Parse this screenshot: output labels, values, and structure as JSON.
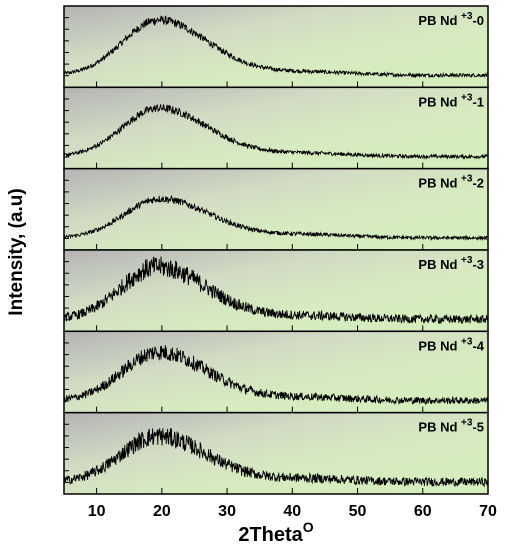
{
  "chart_data": {
    "type": "line",
    "layout": "stacked-panels",
    "xlabel": "2Theta",
    "xlabel_superscript": "O",
    "ylabel": "Intensity, (a.u)",
    "xlim": [
      5,
      70
    ],
    "xticks": [
      10,
      20,
      30,
      40,
      50,
      60,
      70
    ],
    "yticks_labeled": false,
    "background": "gradient gray (left) to light green (right)",
    "line_color": "#000000",
    "panels": [
      {
        "label_prefix": "PB Nd",
        "label_sup": "+3",
        "label_suffix": "-0",
        "peak_x": 19.5,
        "peak_height": 0.82,
        "baseline": 0.12,
        "noise": 0.05
      },
      {
        "label_prefix": "PB Nd",
        "label_sup": "+3",
        "label_suffix": "-1",
        "peak_x": 19.5,
        "peak_height": 0.72,
        "baseline": 0.12,
        "noise": 0.05
      },
      {
        "label_prefix": "PB Nd",
        "label_sup": "+3",
        "label_suffix": "-2",
        "peak_x": 19.8,
        "peak_height": 0.58,
        "baseline": 0.12,
        "noise": 0.05
      },
      {
        "label_prefix": "PB Nd",
        "label_sup": "+3",
        "label_suffix": "-3",
        "peak_x": 19.3,
        "peak_height": 0.78,
        "baseline": 0.12,
        "noise": 0.12
      },
      {
        "label_prefix": "PB Nd",
        "label_sup": "+3",
        "label_suffix": "-4",
        "peak_x": 19.5,
        "peak_height": 0.72,
        "baseline": 0.12,
        "noise": 0.1
      },
      {
        "label_prefix": "PB Nd",
        "label_sup": "+3",
        "label_suffix": "-5",
        "peak_x": 19.3,
        "peak_height": 0.68,
        "baseline": 0.12,
        "noise": 0.12
      }
    ]
  }
}
